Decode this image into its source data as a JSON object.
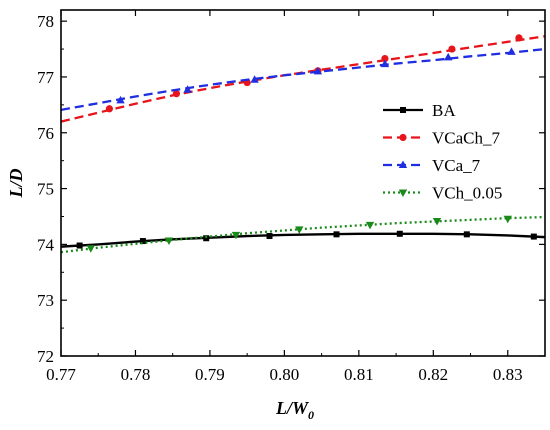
{
  "chart_data": {
    "type": "line",
    "xlabel": "L/W",
    "xlabel_subscript": "0",
    "ylabel": "L/D",
    "xlim": [
      0.77,
      0.835
    ],
    "ylim": [
      72,
      78.2
    ],
    "xticks": [
      "0.77",
      "0.78",
      "0.79",
      "0.80",
      "0.81",
      "0.82",
      "0.83"
    ],
    "yticks": [
      "72",
      "73",
      "74",
      "75",
      "76",
      "77",
      "78"
    ],
    "grid": false,
    "legend_position": "right",
    "series": [
      {
        "name": "BA",
        "color": "#000000",
        "line_style": "solid",
        "marker": "square",
        "x": [
          0.77,
          0.775,
          0.78,
          0.785,
          0.79,
          0.795,
          0.8,
          0.805,
          0.81,
          0.815,
          0.82,
          0.825,
          0.83,
          0.835
        ],
        "y": [
          73.96,
          74.0,
          74.05,
          74.09,
          74.12,
          74.15,
          74.17,
          74.18,
          74.19,
          74.19,
          74.19,
          74.18,
          74.16,
          74.13
        ],
        "markers_x": [
          0.7725,
          0.781,
          0.7895,
          0.798,
          0.807,
          0.8155,
          0.8245,
          0.8335
        ],
        "markers_y": [
          73.98,
          74.06,
          74.11,
          74.15,
          74.18,
          74.19,
          74.18,
          74.14
        ]
      },
      {
        "name": "VCaCh_7",
        "color": "#e8141c",
        "line_style": "dashed",
        "marker": "circle",
        "x": [
          0.77,
          0.775,
          0.78,
          0.785,
          0.79,
          0.795,
          0.8,
          0.805,
          0.81,
          0.815,
          0.82,
          0.825,
          0.83,
          0.835
        ],
        "y": [
          76.2,
          76.36,
          76.52,
          76.67,
          76.8,
          76.92,
          77.03,
          77.13,
          77.23,
          77.33,
          77.43,
          77.53,
          77.63,
          77.73
        ],
        "markers_x": [
          0.7765,
          0.7855,
          0.795,
          0.8045,
          0.8135,
          0.8225,
          0.8315
        ],
        "markers_y": [
          76.43,
          76.7,
          76.9,
          77.11,
          77.33,
          77.5,
          77.7
        ]
      },
      {
        "name": "VCa_7",
        "color": "#1f2ee0",
        "line_style": "dashed",
        "marker": "triangle-up",
        "x": [
          0.77,
          0.775,
          0.78,
          0.785,
          0.79,
          0.795,
          0.8,
          0.805,
          0.81,
          0.815,
          0.82,
          0.825,
          0.83,
          0.835
        ],
        "y": [
          76.41,
          76.53,
          76.65,
          76.76,
          76.86,
          76.95,
          77.03,
          77.1,
          77.17,
          77.24,
          77.3,
          77.37,
          77.43,
          77.5
        ],
        "markers_x": [
          0.778,
          0.787,
          0.796,
          0.8045,
          0.8135,
          0.822,
          0.8305
        ],
        "markers_y": [
          76.58,
          76.77,
          76.95,
          77.1,
          77.23,
          77.35,
          77.45
        ]
      },
      {
        "name": "VCh_0.05",
        "color": "#1a8a1a",
        "line_style": "dotted",
        "marker": "triangle-down",
        "x": [
          0.77,
          0.775,
          0.78,
          0.785,
          0.79,
          0.795,
          0.8,
          0.805,
          0.81,
          0.815,
          0.82,
          0.825,
          0.83,
          0.835
        ],
        "y": [
          73.86,
          73.94,
          74.01,
          74.08,
          74.14,
          74.2,
          74.25,
          74.3,
          74.34,
          74.38,
          74.41,
          74.44,
          74.47,
          74.49
        ],
        "markers_x": [
          0.774,
          0.7845,
          0.7935,
          0.802,
          0.8115,
          0.8205,
          0.83
        ],
        "markers_y": [
          73.93,
          74.07,
          74.17,
          74.27,
          74.35,
          74.42,
          74.46
        ]
      }
    ]
  }
}
